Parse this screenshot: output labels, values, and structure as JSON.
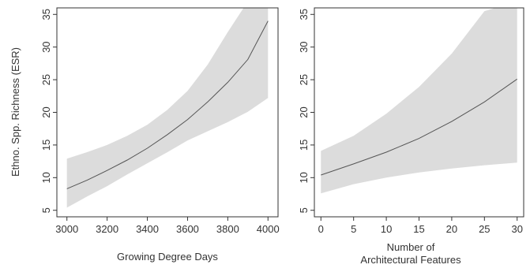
{
  "chart_data": [
    {
      "type": "line",
      "xlabel": "Growing Degree Days",
      "ylabel": "Ethno. Spp. Richness (ESR)",
      "xlim": [
        2950,
        4050
      ],
      "ylim": [
        4,
        36
      ],
      "xticks": [
        3000,
        3200,
        3400,
        3600,
        3800,
        4000
      ],
      "yticks": [
        5,
        10,
        15,
        20,
        25,
        30,
        35
      ],
      "series": [
        {
          "role": "fit",
          "x": [
            3000,
            3100,
            3200,
            3300,
            3400,
            3500,
            3600,
            3700,
            3800,
            3900,
            4000
          ],
          "y": [
            8.3,
            9.6,
            11.1,
            12.7,
            14.5,
            16.6,
            18.9,
            21.6,
            24.6,
            28.1,
            34.0
          ]
        },
        {
          "role": "confidence_band",
          "x": [
            3000,
            3100,
            3200,
            3300,
            3400,
            3500,
            3600,
            3700,
            3800,
            3900,
            4000
          ],
          "lower": [
            5.4,
            7.1,
            8.7,
            10.5,
            12.2,
            13.9,
            15.7,
            17.1,
            18.5,
            20.1,
            22.2
          ],
          "upper": [
            12.9,
            13.9,
            15.0,
            16.4,
            18.1,
            20.4,
            23.3,
            27.3,
            32.3,
            37.0,
            37.0
          ]
        }
      ],
      "band_color": "#dcdcdc",
      "line_color": "#555555",
      "grid": false
    },
    {
      "type": "line",
      "xlabel": [
        "Number of",
        "Architectural Features"
      ],
      "ylabel": "",
      "xlim": [
        -1,
        31
      ],
      "ylim": [
        4,
        36
      ],
      "xticks": [
        0,
        5,
        10,
        15,
        20,
        25,
        30
      ],
      "yticks": [
        5,
        10,
        15,
        20,
        25,
        30,
        35
      ],
      "series": [
        {
          "role": "fit",
          "x": [
            0,
            5,
            10,
            15,
            20,
            25,
            30
          ],
          "y": [
            10.4,
            12.1,
            13.9,
            16.0,
            18.6,
            21.6,
            25.1
          ]
        },
        {
          "role": "confidence_band",
          "x": [
            0,
            5,
            10,
            15,
            20,
            25,
            30
          ],
          "lower": [
            7.6,
            9.0,
            10.0,
            10.8,
            11.4,
            11.9,
            12.3
          ],
          "upper": [
            14.1,
            16.4,
            19.8,
            23.9,
            29.0,
            35.5,
            37.0
          ]
        }
      ],
      "band_color": "#dcdcdc",
      "line_color": "#555555",
      "grid": false
    }
  ]
}
